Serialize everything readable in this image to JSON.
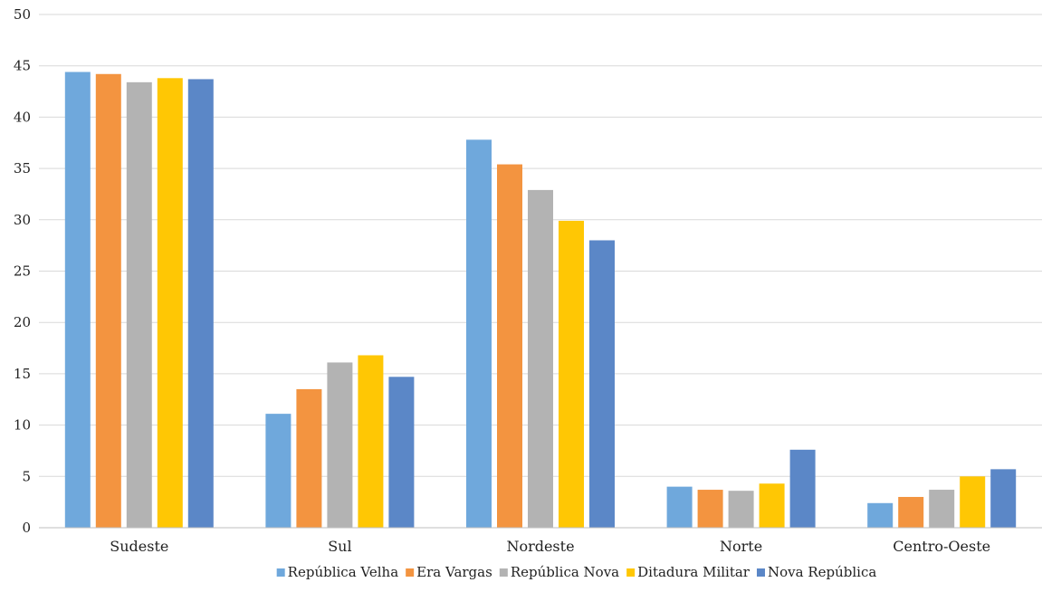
{
  "chart_data": {
    "type": "bar",
    "categories": [
      "Sudeste",
      "Sul",
      "Nordeste",
      "Norte",
      "Centro-Oeste"
    ],
    "series": [
      {
        "name": "República Velha",
        "color": "#6FA8DC",
        "values": [
          44.4,
          11.1,
          37.8,
          4.0,
          2.4
        ]
      },
      {
        "name": "Era Vargas",
        "color": "#F39440",
        "values": [
          44.2,
          13.5,
          35.4,
          3.7,
          3.0
        ]
      },
      {
        "name": "República Nova",
        "color": "#B3B3B3",
        "values": [
          43.4,
          16.1,
          32.9,
          3.6,
          3.7
        ]
      },
      {
        "name": "Ditadura Militar",
        "color": "#FFC704",
        "values": [
          43.8,
          16.8,
          29.9,
          4.3,
          5.0
        ]
      },
      {
        "name": "Nova República",
        "color": "#5B87C7",
        "values": [
          43.7,
          14.7,
          28.0,
          7.6,
          5.7
        ]
      }
    ],
    "ylim": [
      0,
      50
    ],
    "yticks": [
      "0",
      "5",
      "10",
      "15",
      "20",
      "25",
      "30",
      "35",
      "40",
      "45",
      "50"
    ],
    "grid": true,
    "legend_position": "bottom"
  }
}
